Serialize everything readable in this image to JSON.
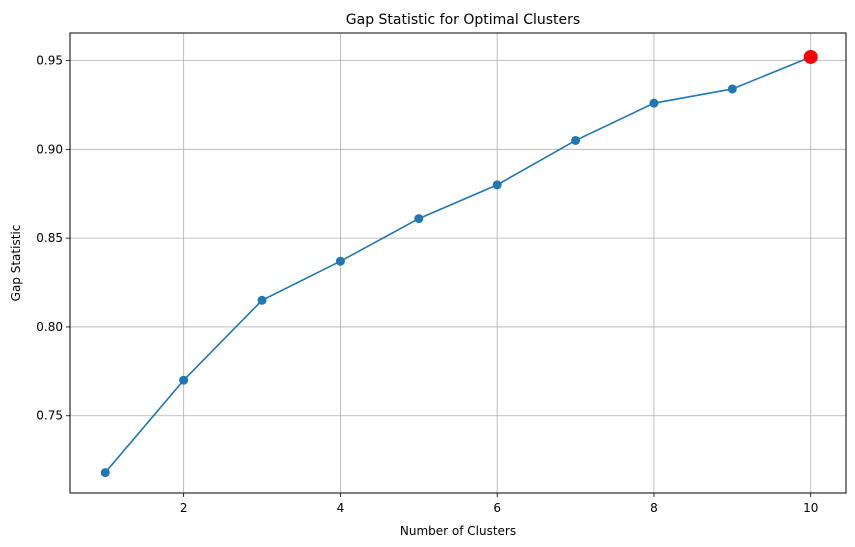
{
  "chart_data": {
    "type": "line",
    "title": "Gap Statistic for Optimal Clusters",
    "xlabel": "Number of Clusters",
    "ylabel": "Gap Statistic",
    "xlim": [
      0.55,
      10.45
    ],
    "ylim": [
      0.7065,
      0.9655
    ],
    "x_ticks": [
      2,
      4,
      6,
      8,
      10
    ],
    "x_tick_labels": [
      "2",
      "4",
      "6",
      "8",
      "10"
    ],
    "y_ticks": [
      0.75,
      0.8,
      0.85,
      0.9,
      0.95
    ],
    "y_tick_labels": [
      "0.75",
      "0.80",
      "0.85",
      "0.90",
      "0.95"
    ],
    "grid": true,
    "series": [
      {
        "x": [
          1,
          2,
          3,
          4,
          5,
          6,
          7,
          8,
          9,
          10
        ],
        "values": [
          0.718,
          0.77,
          0.815,
          0.837,
          0.861,
          0.88,
          0.905,
          0.926,
          0.934,
          0.952
        ],
        "color": "#1f77b4",
        "marker": "circle"
      }
    ],
    "highlight": {
      "x": 10,
      "y": 0.952,
      "color": "#ff0000"
    }
  }
}
